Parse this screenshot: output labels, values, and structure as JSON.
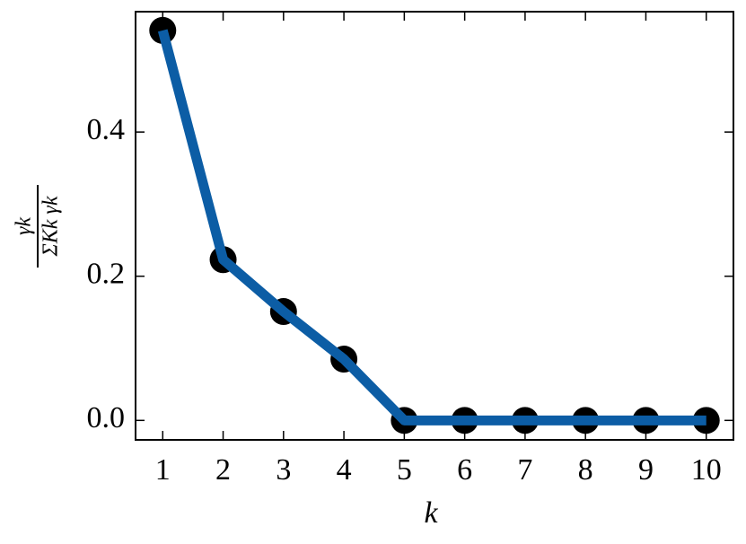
{
  "chart_data": {
    "type": "line",
    "xlabel": "k",
    "ylabel": {
      "numerator": "γk",
      "denominator": "ΣKk γk"
    },
    "x": [
      1,
      2,
      3,
      4,
      5,
      6,
      7,
      8,
      9,
      10
    ],
    "series": [
      {
        "color": "#0c5da5",
        "marker_color": "#000000",
        "values": [
          0.541,
          0.223,
          0.151,
          0.085,
          0,
          0,
          0,
          0,
          0,
          0
        ]
      }
    ],
    "xlim": [
      0.55,
      10.45
    ],
    "ylim": [
      -0.027,
      0.567
    ],
    "xticks": [
      1,
      2,
      3,
      4,
      5,
      6,
      7,
      8,
      9,
      10
    ],
    "yticks": [
      {
        "value": 0,
        "label": "0.0"
      },
      {
        "value": 0.2,
        "label": "0.2"
      },
      {
        "value": 0.4,
        "label": "0.4"
      }
    ]
  }
}
